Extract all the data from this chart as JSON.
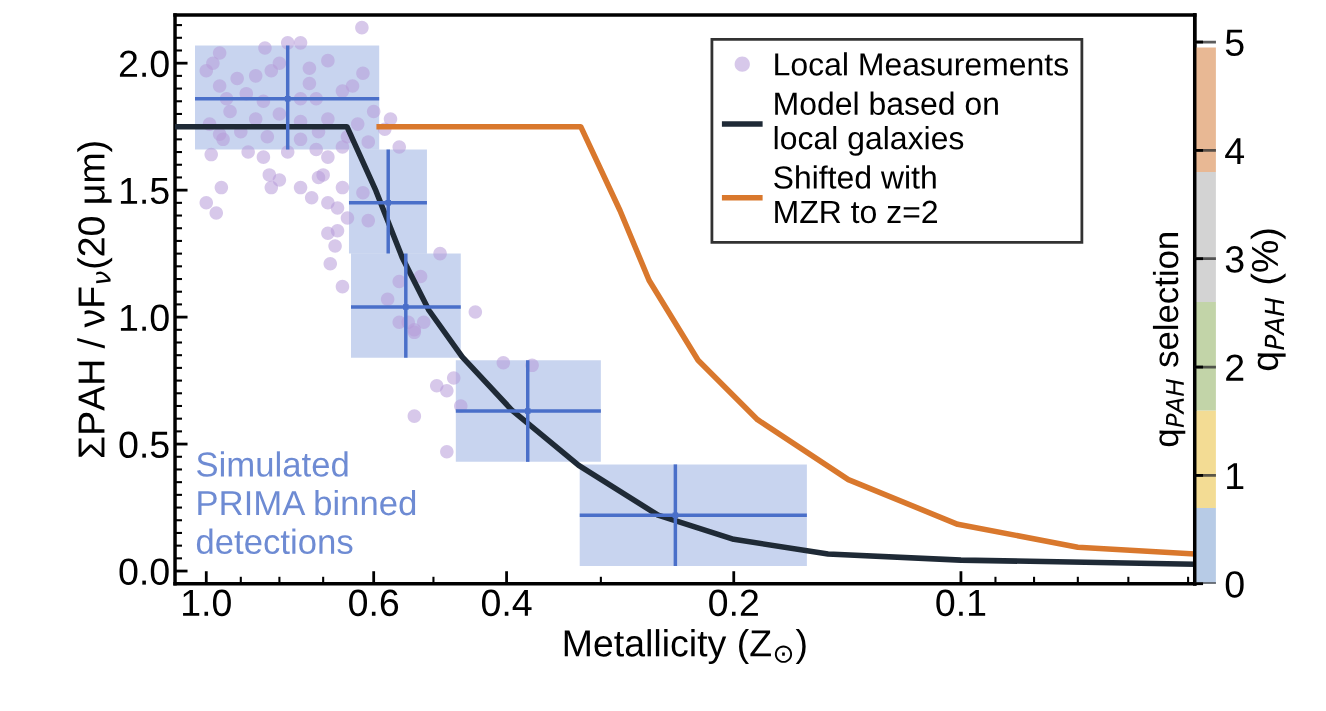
{
  "chart_data": [
    {
      "type": "scatter",
      "xlabel": "Metallicity (Z$_{⊙}$)",
      "ylabel": "ΣPAH / νF$_{ν}$(20 μm)",
      "log": "x",
      "xlim": [
        1.1,
        0.049
      ],
      "xticks": [
        {
          "value": 1.0,
          "label": "1.0"
        },
        0.6,
        0.4,
        0.2,
        0.1
      ],
      "ylim": [
        -0.05,
        2.19
      ],
      "yticks": [
        {
          "value": 0.0,
          "label": "0.0"
        },
        0.5,
        {
          "value": 1.0,
          "label": "1.0"
        },
        1.5,
        {
          "value": 2.0,
          "label": "2.0"
        }
      ],
      "annotations": [
        "Simulated\nPRIMA binned\ndetections",
        "q$_{PAH}$ selection"
      ],
      "legend": "top right",
      "series": [
        {
          "type": "scatter",
          "name": "Local Measurements",
          "color": "#b79ad8",
          "marker": "circle",
          "x": [
            0.622,
            0.836,
            0.78,
            0.75,
            0.96,
            1.0,
            0.98,
            0.91,
            0.86,
            0.82,
            0.8,
            0.73,
            0.69,
            0.62,
            0.96,
            0.73,
            0.64,
            0.94,
            0.885,
            0.84,
            0.75,
            0.715,
            0.66,
            0.6,
            0.57,
            0.99,
            0.93,
            0.86,
            0.8,
            0.75,
            0.69,
            0.63,
            0.96,
            0.9,
            0.83,
            0.75,
            0.71,
            0.65,
            0.61,
            0.58,
            0.95,
            0.985,
            0.88,
            0.84,
            0.78,
            0.715,
            0.69,
            0.66,
            0.555,
            0.955,
            1.0,
            0.97,
            0.825,
            0.82,
            0.8,
            0.75,
            0.71,
            0.7,
            0.725,
            0.69,
            0.67,
            0.66,
            0.62,
            0.65,
            0.61,
            0.69,
            0.67,
            0.675,
            0.685,
            0.66,
            0.555,
            0.52,
            0.575,
            0.49,
            0.44,
            0.54,
            0.53,
            0.555,
            0.53,
            0.515,
            0.404,
            0.37,
            0.495,
            0.48,
            0.47,
            0.46,
            0.53,
            0.48
          ],
          "values": [
            2.14,
            2.06,
            2.08,
            2.08,
            2.04,
            1.97,
            2.0,
            1.94,
            1.95,
            1.97,
            2.0,
            1.98,
            2.01,
            1.96,
            1.91,
            1.92,
            1.91,
            1.86,
            1.88,
            1.85,
            1.86,
            1.86,
            1.89,
            1.81,
            1.78,
            1.76,
            1.81,
            1.78,
            1.8,
            1.77,
            1.78,
            1.76,
            1.72,
            1.73,
            1.71,
            1.7,
            1.73,
            1.71,
            1.69,
            1.74,
            1.7,
            1.64,
            1.65,
            1.63,
            1.65,
            1.66,
            1.63,
            1.67,
            1.67,
            1.51,
            1.45,
            1.41,
            1.56,
            1.51,
            1.54,
            1.51,
            1.55,
            1.56,
            1.47,
            1.45,
            1.43,
            1.51,
            1.49,
            1.39,
            1.38,
            1.33,
            1.34,
            1.28,
            1.21,
            1.12,
            1.14,
            1.16,
            1.07,
            1.25,
            1.02,
            0.98,
            0.95,
            0.98,
            0.94,
            0.98,
            0.82,
            0.81,
            0.73,
            0.71,
            0.76,
            0.65,
            0.61,
            0.47
          ]
        },
        {
          "type": "scatter",
          "color": "#4a6fc9",
          "marker": "square",
          "x": [
            0.78,
            0.574,
            0.544,
            0.375,
            0.239
          ],
          "values": [
            1.86,
            1.45,
            1.04,
            0.63,
            0.22
          ],
          "xerrors": [
            [
              0.59,
              1.035
            ],
            [
              0.51,
              0.647
            ],
            [
              0.46,
              0.643
            ],
            [
              0.3,
              0.467
            ],
            [
              0.16,
              0.32
            ]
          ],
          "errors": [
            [
              1.66,
              2.07
            ],
            [
              1.25,
              1.66
            ],
            [
              0.84,
              1.25
            ],
            [
              0.43,
              0.83
            ],
            [
              0.02,
              0.42
            ]
          ]
        },
        {
          "type": "line",
          "name": "Model based on\nlocal galaxies",
          "color": "#1f2a36",
          "x": [
            1.1,
            0.651,
            0.596,
            0.55,
            0.507,
            0.458,
            0.394,
            0.321,
            0.252,
            0.2,
            0.15,
            0.1,
            0.049
          ],
          "values": [
            1.75,
            1.75,
            1.498,
            1.235,
            1.027,
            0.843,
            0.635,
            0.416,
            0.22,
            0.125,
            0.067,
            0.043,
            0.027
          ]
        },
        {
          "type": "line",
          "name": "Shifted with\nMZR to z=2",
          "color": "#d9782d",
          "x": [
            0.59,
            0.319,
            0.283,
            0.259,
            0.223,
            0.186,
            0.141,
            0.101,
            0.07,
            0.049
          ],
          "values": [
            1.75,
            1.75,
            1.42,
            1.145,
            0.83,
            0.596,
            0.36,
            0.184,
            0.094,
            0.067
          ]
        }
      ]
    },
    {
      "type": "bar",
      "stacked": true,
      "categories": [
        null
      ],
      "ylabel": "q$_{PAH}$ (%)",
      "ylim": [
        0,
        5.25
      ],
      "yticks": [
        0,
        1,
        2,
        3,
        4,
        5
      ],
      "tick_labels": "y",
      "grid": "y",
      "series": [
        {
          "color": "#b7cbe6",
          "values": [
            0.7
          ]
        },
        {
          "color": "#f3dc94",
          "values": [
            0.9
          ]
        },
        {
          "color": "#c2d4a8",
          "values": [
            1.0
          ]
        },
        {
          "color": "#d3d3d3",
          "values": [
            1.2
          ]
        },
        {
          "color": "#e8b894",
          "values": [
            1.15
          ]
        }
      ]
    }
  ]
}
